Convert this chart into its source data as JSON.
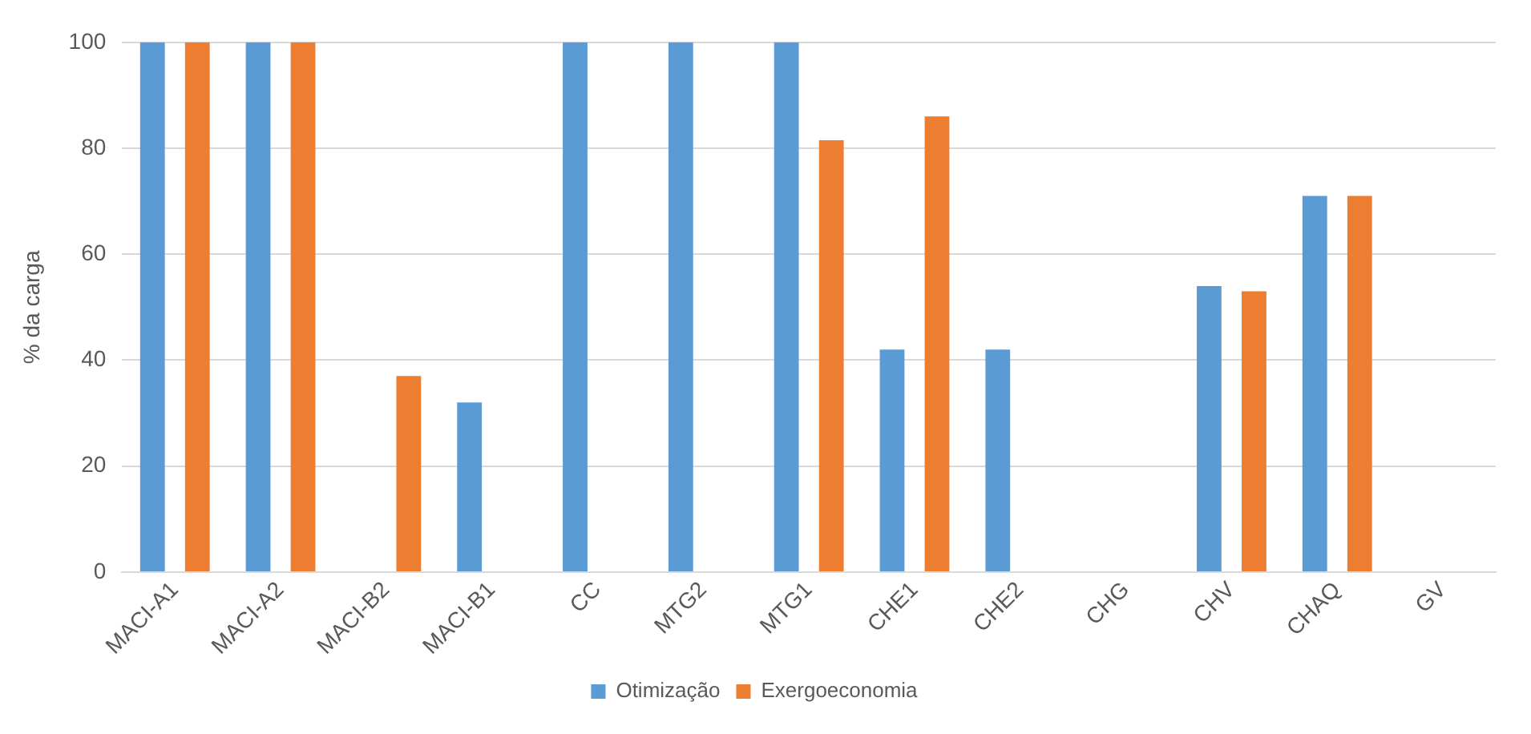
{
  "chart_data": {
    "type": "bar",
    "ylabel": "% da carga",
    "categories": [
      "MACI-A1",
      "MACI-A2",
      "MACI-B2",
      "MACI-B1",
      "CC",
      "MTG2",
      "MTG1",
      "CHE1",
      "CHE2",
      "CHG",
      "CHV",
      "CHAQ",
      "GV"
    ],
    "series": [
      {
        "name": "Otimização",
        "color": "#5b9bd5",
        "values": [
          100,
          100,
          0,
          32,
          100,
          100,
          100,
          42,
          42,
          0,
          54,
          71,
          0
        ]
      },
      {
        "name": "Exergoeconomia",
        "color": "#ed7d31",
        "values": [
          100,
          100,
          37,
          0,
          0,
          0,
          81.5,
          86,
          0,
          0,
          53,
          71,
          0
        ]
      }
    ],
    "ylim": [
      0,
      100
    ],
    "yticks": [
      0,
      20,
      40,
      60,
      80,
      100
    ],
    "grid": "y",
    "legend": "bottom"
  }
}
